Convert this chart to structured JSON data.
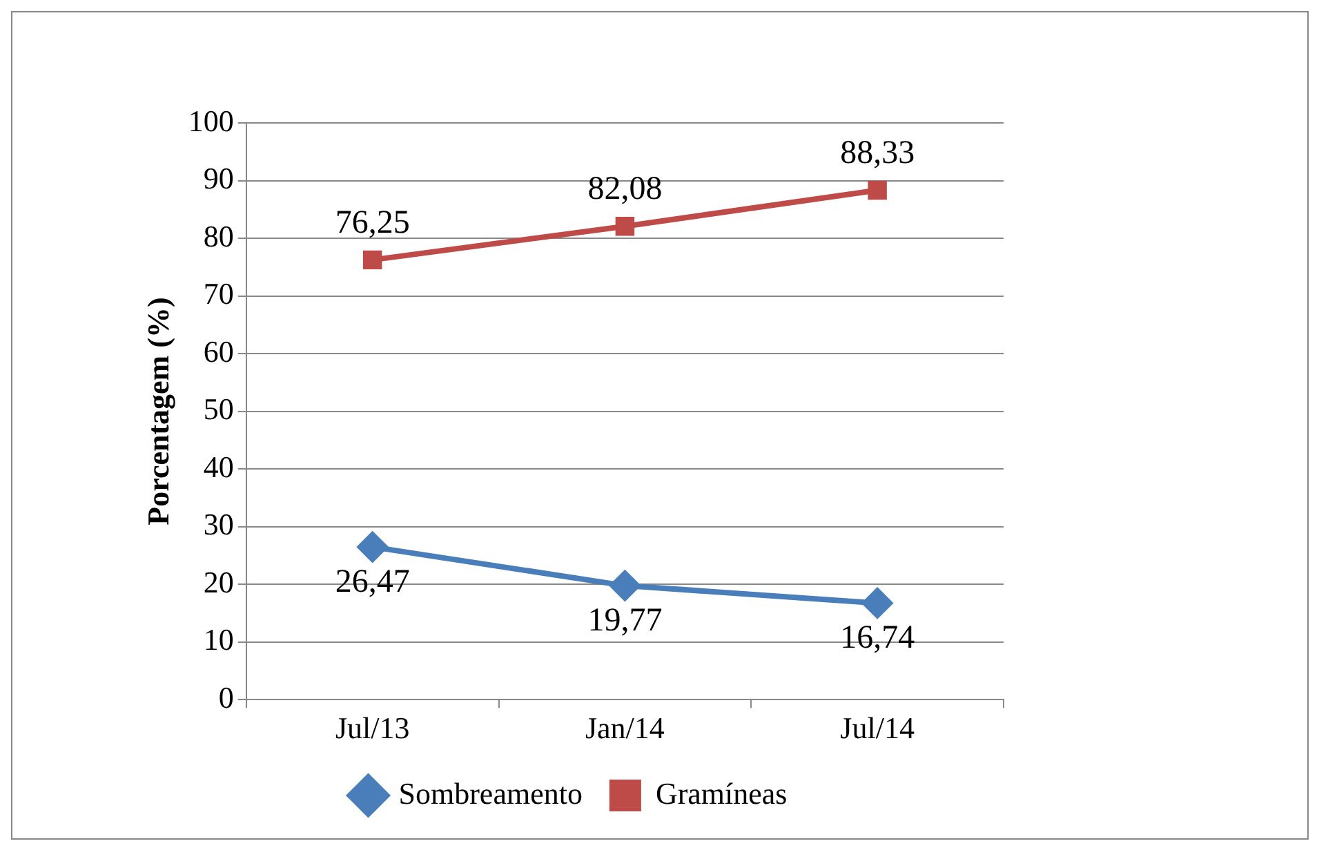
{
  "chart_data": {
    "type": "line",
    "ylabel": "Porcentagem (%)",
    "categories": [
      "Jul/13",
      "Jan/14",
      "Jul/14"
    ],
    "ylim": [
      0,
      100
    ],
    "yticks": [
      0,
      10,
      20,
      30,
      40,
      50,
      60,
      70,
      80,
      90,
      100
    ],
    "grid": "y",
    "legend": "bottom",
    "series": [
      {
        "name": "Sombreamento",
        "color": "#4a7ebb",
        "marker": "diamond",
        "values": [
          26.47,
          19.77,
          16.74
        ],
        "value_labels": [
          "26,47",
          "19,77",
          "16,74"
        ]
      },
      {
        "name": "Gramíneas",
        "color": "#be4b48",
        "marker": "square",
        "values": [
          76.25,
          82.08,
          88.33
        ],
        "value_labels": [
          "76,25",
          "82,08",
          "88,33"
        ]
      }
    ]
  }
}
